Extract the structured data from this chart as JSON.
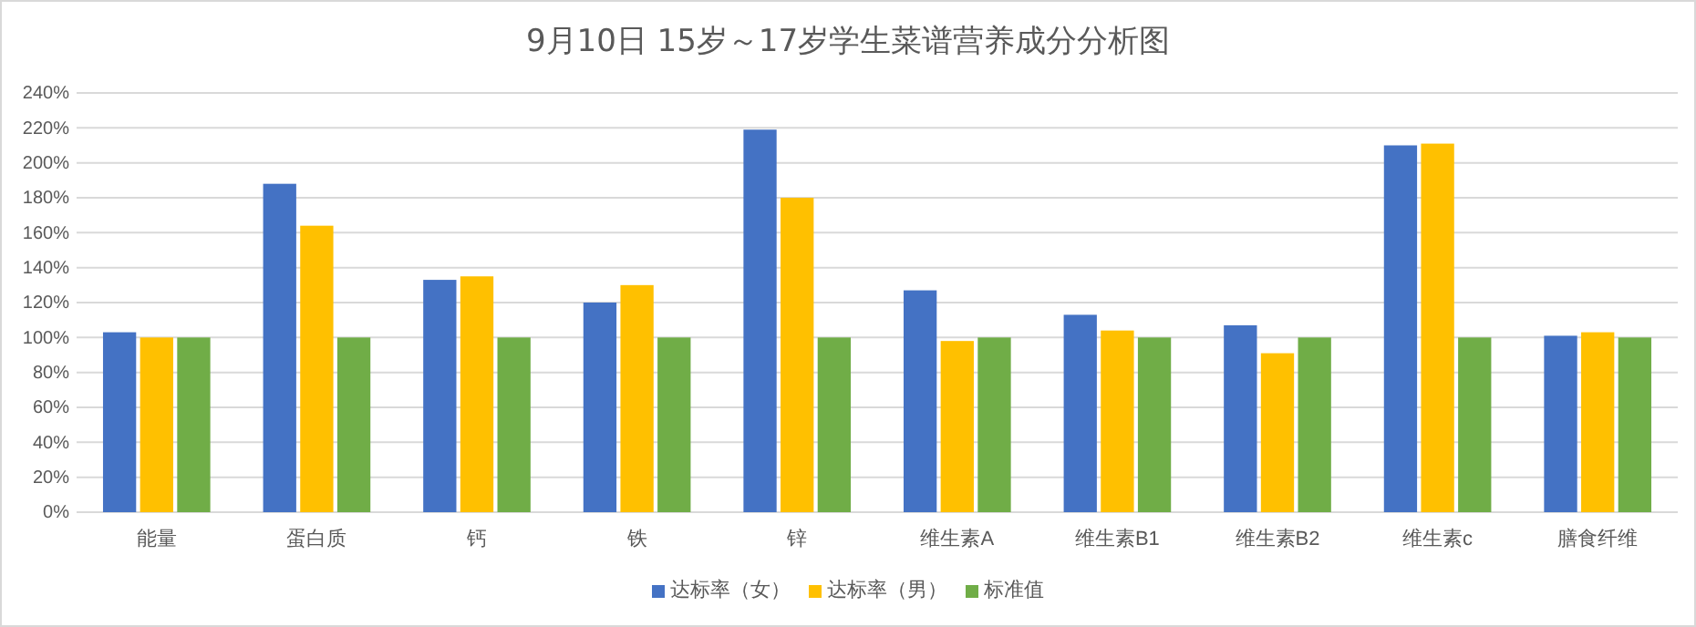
{
  "chart_data": {
    "type": "bar",
    "title": "9月10日 15岁～17岁学生菜谱营养成分分析图",
    "categories": [
      "能量",
      "蛋白质",
      "钙",
      "铁",
      "锌",
      "维生素A",
      "维生素B1",
      "维生素B2",
      "维生素c",
      "膳食纤维"
    ],
    "series": [
      {
        "name": "达标率（女）",
        "color": "#4472c4",
        "values": [
          103,
          188,
          133,
          120,
          219,
          127,
          113,
          107,
          210,
          101
        ]
      },
      {
        "name": "达标率（男）",
        "color": "#ffc000",
        "values": [
          100,
          164,
          135,
          130,
          180,
          98,
          104,
          91,
          211,
          103
        ]
      },
      {
        "name": "标准值",
        "color": "#70ad47",
        "values": [
          100,
          100,
          100,
          100,
          100,
          100,
          100,
          100,
          100,
          100
        ]
      }
    ],
    "ylim": [
      0,
      240
    ],
    "yticks": [
      {
        "value": 0,
        "label": "0%"
      },
      {
        "value": 20,
        "label": "20%"
      },
      {
        "value": 40,
        "label": "40%"
      },
      {
        "value": 60,
        "label": "60%"
      },
      {
        "value": 80,
        "label": "80%"
      },
      {
        "value": 100,
        "label": "100%"
      },
      {
        "value": 120,
        "label": "120%"
      },
      {
        "value": 140,
        "label": "140%"
      },
      {
        "value": 160,
        "label": "160%"
      },
      {
        "value": 180,
        "label": "180%"
      },
      {
        "value": 200,
        "label": "200%"
      },
      {
        "value": 220,
        "label": "220%"
      },
      {
        "value": 240,
        "label": "240%"
      }
    ],
    "grid": "y",
    "legend": "bottom"
  }
}
